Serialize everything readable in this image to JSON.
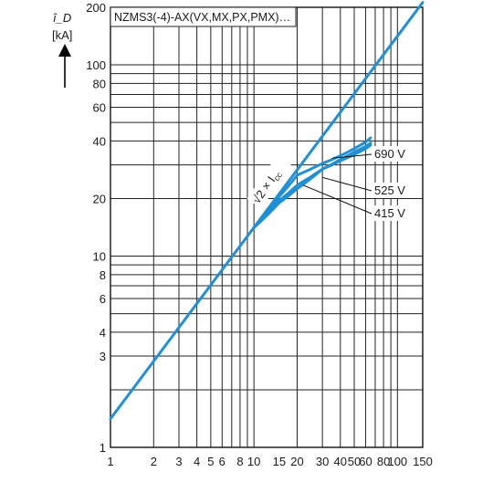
{
  "chart_data": {
    "type": "line",
    "title": "NZMS3(-4)-AX(VX,MX,PX,PMX)…",
    "ylabel": "î_D",
    "ylabel_unit": "[kA]",
    "x_scale": "log",
    "y_scale": "log",
    "xlim": [
      1,
      150
    ],
    "ylim": [
      1,
      200
    ],
    "grid": true,
    "x_ticks": [
      1,
      2,
      3,
      4,
      5,
      6,
      8,
      10,
      15,
      20,
      30,
      40,
      50,
      60,
      80,
      100,
      150
    ],
    "x_tick_labels": [
      "1",
      "2",
      "3",
      "4",
      "5",
      "6",
      "8",
      "10",
      "15",
      "20",
      "30",
      "40",
      "50",
      "60",
      "80",
      "100",
      "150"
    ],
    "y_ticks": [
      1,
      2,
      3,
      4,
      6,
      8,
      10,
      20,
      40,
      60,
      80,
      100,
      200
    ],
    "y_tick_labels": [
      "1",
      "",
      "3",
      "4",
      "6",
      "8",
      "10",
      "20",
      "40",
      "60",
      "80",
      "100",
      "200"
    ],
    "series": [
      {
        "name": "√2 × Icc",
        "label_main": "√2 × I",
        "label_sub": "cc",
        "x": [
          1,
          150
        ],
        "y": [
          1.41,
          212
        ]
      },
      {
        "name": "690 V",
        "x": [
          10,
          15,
          20,
          30,
          40,
          50,
          60,
          65
        ],
        "y": [
          14.1,
          20.5,
          26.5,
          30.5,
          33.5,
          36.5,
          39.5,
          41.5
        ]
      },
      {
        "name": "525 V",
        "x": [
          10,
          15,
          20,
          30,
          40,
          50,
          60,
          65
        ],
        "y": [
          14.1,
          19.5,
          23.5,
          28.5,
          32,
          35,
          37.5,
          39
        ]
      },
      {
        "name": "415 V",
        "x": [
          10,
          15,
          20,
          30,
          40,
          50,
          60,
          65
        ],
        "y": [
          14.1,
          19,
          22.5,
          28.5,
          31.5,
          34,
          36.5,
          38
        ]
      }
    ],
    "annotations": [
      {
        "text": "690 V",
        "series": "690 V",
        "at_x": 35,
        "at_y": 32.5
      },
      {
        "text": "525 V",
        "series": "525 V",
        "at_x": 30,
        "at_y": 25.8
      },
      {
        "text": "415 V",
        "series": "415 V",
        "at_x": 22,
        "at_y": 23.5
      }
    ],
    "colors": {
      "curve": "#1f8fd6",
      "grid": "#222222",
      "text": "#1a1a1a"
    }
  }
}
